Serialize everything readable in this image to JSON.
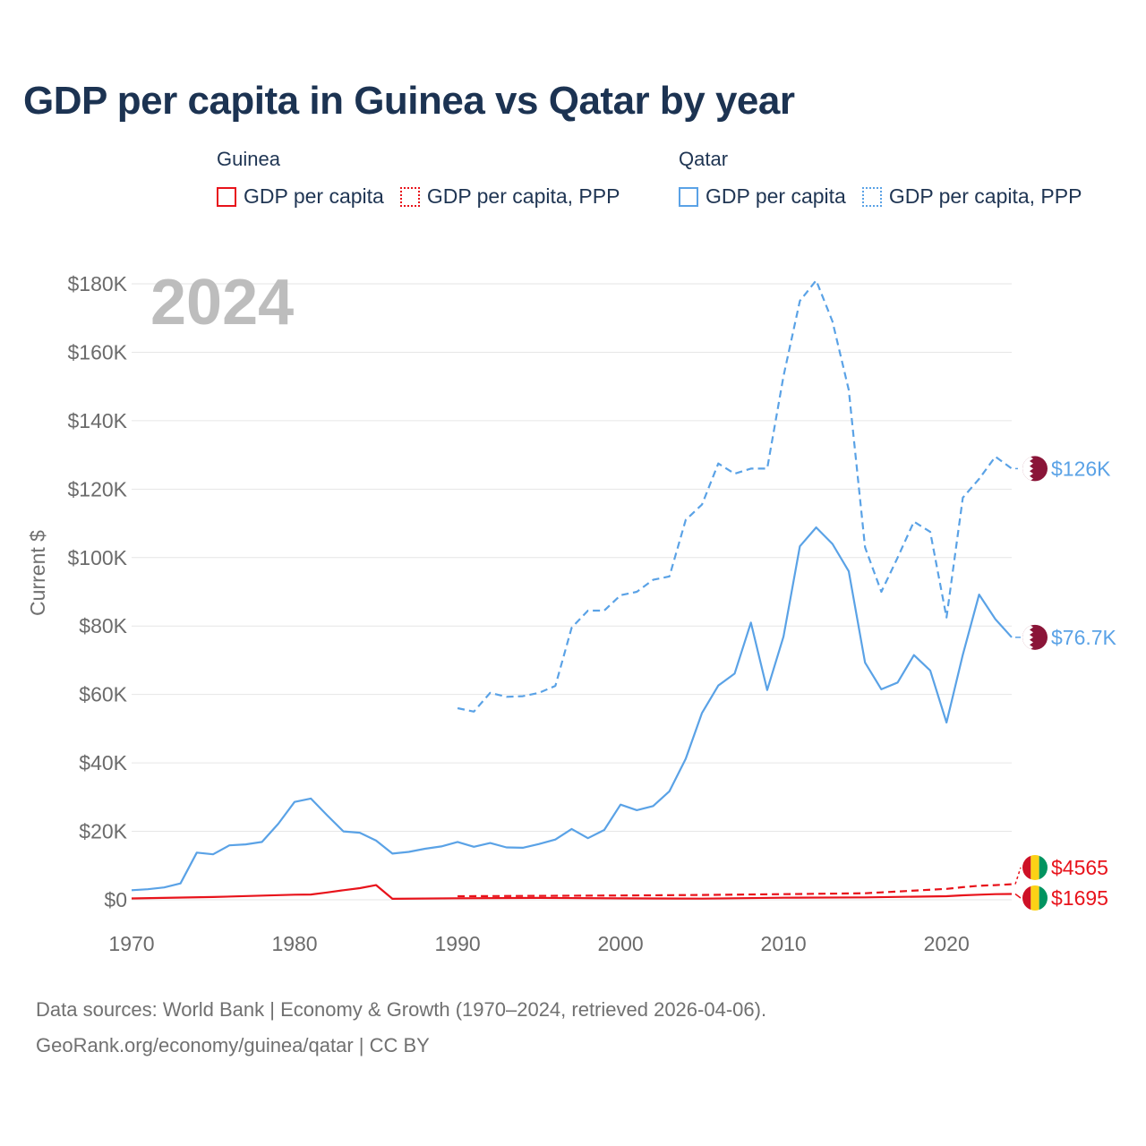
{
  "title": "GDP per capita in Guinea vs Qatar by year",
  "legend": {
    "groups": [
      {
        "name": "Guinea",
        "items": [
          {
            "label": "GDP per capita",
            "color": "#e8131b",
            "style": "solid"
          },
          {
            "label": "GDP per capita, PPP",
            "color": "#e8131b",
            "style": "dotted"
          }
        ]
      },
      {
        "name": "Qatar",
        "items": [
          {
            "label": "GDP per capita",
            "color": "#5aa2e6",
            "style": "solid"
          },
          {
            "label": "GDP per capita, PPP",
            "color": "#5aa2e6",
            "style": "dotted"
          }
        ]
      }
    ]
  },
  "chart_data": {
    "type": "line",
    "title": "GDP per capita in Guinea vs Qatar by year",
    "year_label": "2024",
    "xlabel": "",
    "ylabel": "Current $",
    "xlim": [
      1970,
      2024
    ],
    "ylim": [
      0,
      180000
    ],
    "x_ticks": [
      1970,
      1980,
      1990,
      2000,
      2010,
      2020
    ],
    "y_ticks": [
      {
        "value": 0,
        "label": "$0"
      },
      {
        "value": 20000,
        "label": "$20K"
      },
      {
        "value": 40000,
        "label": "$40K"
      },
      {
        "value": 60000,
        "label": "$60K"
      },
      {
        "value": 80000,
        "label": "$80K"
      },
      {
        "value": 100000,
        "label": "$100K"
      },
      {
        "value": 120000,
        "label": "$120K"
      },
      {
        "value": 140000,
        "label": "$140K"
      },
      {
        "value": 160000,
        "label": "$160K"
      },
      {
        "value": 180000,
        "label": "$180K"
      }
    ],
    "grid": true,
    "series": [
      {
        "name": "Qatar GDP per capita, PPP",
        "country": "Qatar",
        "color": "#5aa2e6",
        "dashed": true,
        "end_label": "$126K",
        "x": [
          1990,
          1991,
          1992,
          1993,
          1994,
          1995,
          1996,
          1997,
          1998,
          1999,
          2000,
          2001,
          2002,
          2003,
          2004,
          2005,
          2006,
          2007,
          2008,
          2009,
          2010,
          2011,
          2012,
          2013,
          2014,
          2015,
          2016,
          2017,
          2018,
          2019,
          2020,
          2021,
          2022,
          2023,
          2024
        ],
        "values": [
          56000,
          55000,
          60500,
          59300,
          59500,
          60500,
          62500,
          79500,
          84500,
          84500,
          89000,
          90000,
          93500,
          94500,
          111000,
          115500,
          127500,
          124500,
          126000,
          126000,
          153000,
          175000,
          181000,
          169000,
          149000,
          103000,
          90000,
          100000,
          110500,
          107500,
          82500,
          117500,
          123000,
          129500,
          126000
        ]
      },
      {
        "name": "Qatar GDP per capita",
        "country": "Qatar",
        "color": "#5aa2e6",
        "dashed": false,
        "end_label": "$76.7K",
        "x": [
          1970,
          1971,
          1972,
          1973,
          1974,
          1975,
          1976,
          1977,
          1978,
          1979,
          1980,
          1981,
          1982,
          1983,
          1984,
          1985,
          1986,
          1987,
          1988,
          1989,
          1990,
          1991,
          1992,
          1993,
          1994,
          1995,
          1996,
          1997,
          1998,
          1999,
          2000,
          2001,
          2002,
          2003,
          2004,
          2005,
          2006,
          2007,
          2008,
          2009,
          2010,
          2011,
          2012,
          2013,
          2014,
          2015,
          2016,
          2017,
          2018,
          2019,
          2020,
          2021,
          2022,
          2023,
          2024
        ],
        "values": [
          2800,
          3100,
          3600,
          4800,
          13800,
          13300,
          15900,
          16200,
          16900,
          22200,
          28600,
          29600,
          24700,
          20000,
          19600,
          17300,
          13500,
          14000,
          14900,
          15600,
          16900,
          15500,
          16600,
          15300,
          15200,
          16300,
          17600,
          20700,
          18000,
          20400,
          27800,
          26200,
          27400,
          31700,
          41200,
          54600,
          62600,
          66100,
          81000,
          61300,
          76900,
          103300,
          108800,
          104000,
          96000,
          69300,
          61500,
          63500,
          71500,
          67000,
          51800,
          71600,
          89200,
          82000,
          76700
        ]
      },
      {
        "name": "Guinea GDP per capita, PPP",
        "country": "Guinea",
        "color": "#e8131b",
        "dashed": true,
        "end_label": "$4565",
        "x": [
          1990,
          1995,
          2000,
          2005,
          2010,
          2015,
          2020,
          2021,
          2022,
          2023,
          2024
        ],
        "values": [
          1050,
          1150,
          1250,
          1400,
          1650,
          1900,
          3200,
          3700,
          4100,
          4300,
          4565
        ]
      },
      {
        "name": "Guinea GDP per capita",
        "country": "Guinea",
        "color": "#e8131b",
        "dashed": false,
        "end_label": "$1695",
        "x": [
          1970,
          1975,
          1980,
          1981,
          1982,
          1983,
          1984,
          1985,
          1986,
          1990,
          1995,
          2000,
          2005,
          2010,
          2015,
          2020,
          2021,
          2022,
          2023,
          2024
        ],
        "values": [
          400,
          800,
          1500,
          1550,
          2150,
          2800,
          3400,
          4300,
          300,
          450,
          550,
          420,
          330,
          600,
          700,
          1050,
          1300,
          1500,
          1650,
          1695
        ]
      }
    ]
  },
  "source": {
    "line1": "Data sources: World Bank | Economy & Growth (1970–2024, retrieved 2026-04-06).",
    "line2": "GeoRank.org/economy/guinea/qatar | CC BY"
  }
}
